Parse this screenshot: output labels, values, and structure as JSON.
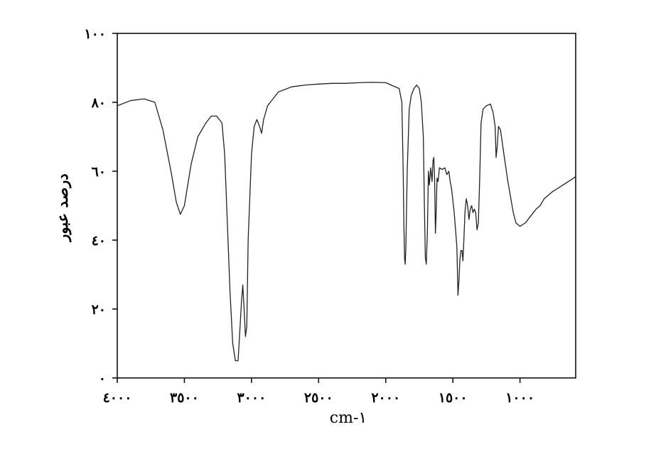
{
  "chart_data": {
    "type": "line",
    "xlabel": "cm-١",
    "ylabel": "درصد عبور",
    "xlim": [
      4000,
      585
    ],
    "ylim": [
      0,
      100
    ],
    "x_reversed": true,
    "grid": false,
    "xticks": [
      4000,
      3500,
      3000,
      2500,
      2000,
      1500,
      1000
    ],
    "xtick_labels": [
      "٤٠٠٠",
      "٣٥٠٠",
      "٣٠٠٠",
      "٢٥٠٠",
      "٢٠٠٠",
      "١٥٠٠",
      "١٠٠٠"
    ],
    "yticks": [
      0,
      20,
      40,
      60,
      80,
      100
    ],
    "ytick_labels": [
      "٠",
      "٢٠",
      "٤٠",
      "٦٠",
      "٨٠",
      "١٠٠"
    ],
    "series": [
      {
        "color": "#222222",
        "points": [
          [
            4000,
            79
          ],
          [
            3900,
            80.5
          ],
          [
            3800,
            81
          ],
          [
            3720,
            80
          ],
          [
            3660,
            72
          ],
          [
            3600,
            60
          ],
          [
            3560,
            51
          ],
          [
            3530,
            47.5
          ],
          [
            3500,
            50
          ],
          [
            3450,
            62
          ],
          [
            3400,
            70
          ],
          [
            3340,
            74
          ],
          [
            3300,
            76
          ],
          [
            3260,
            76
          ],
          [
            3220,
            74
          ],
          [
            3200,
            65
          ],
          [
            3180,
            45
          ],
          [
            3160,
            25
          ],
          [
            3140,
            10
          ],
          [
            3120,
            5
          ],
          [
            3100,
            5
          ],
          [
            3085,
            15
          ],
          [
            3075,
            22
          ],
          [
            3065,
            27
          ],
          [
            3055,
            20
          ],
          [
            3045,
            12
          ],
          [
            3035,
            15
          ],
          [
            3025,
            40
          ],
          [
            3000,
            65
          ],
          [
            2980,
            73
          ],
          [
            2960,
            75
          ],
          [
            2940,
            73
          ],
          [
            2925,
            71
          ],
          [
            2910,
            75
          ],
          [
            2880,
            79
          ],
          [
            2800,
            83
          ],
          [
            2700,
            84.5
          ],
          [
            2600,
            85
          ],
          [
            2500,
            85.3
          ],
          [
            2400,
            85.5
          ],
          [
            2300,
            85.5
          ],
          [
            2200,
            85.7
          ],
          [
            2100,
            85.8
          ],
          [
            2000,
            85.7
          ],
          [
            1900,
            84
          ],
          [
            1880,
            80
          ],
          [
            1870,
            60
          ],
          [
            1865,
            45
          ],
          [
            1860,
            35
          ],
          [
            1855,
            33
          ],
          [
            1850,
            38
          ],
          [
            1840,
            60
          ],
          [
            1825,
            78
          ],
          [
            1810,
            82
          ],
          [
            1790,
            84
          ],
          [
            1770,
            85
          ],
          [
            1750,
            84
          ],
          [
            1735,
            80
          ],
          [
            1720,
            70
          ],
          [
            1712,
            50
          ],
          [
            1705,
            35
          ],
          [
            1698,
            33
          ],
          [
            1690,
            42
          ],
          [
            1682,
            60
          ],
          [
            1675,
            56
          ],
          [
            1665,
            61
          ],
          [
            1655,
            57
          ],
          [
            1648,
            63
          ],
          [
            1642,
            64
          ],
          [
            1636,
            58
          ],
          [
            1630,
            42
          ],
          [
            1625,
            47
          ],
          [
            1618,
            58
          ],
          [
            1610,
            57
          ],
          [
            1600,
            61
          ],
          [
            1580,
            60.5
          ],
          [
            1560,
            61
          ],
          [
            1545,
            59
          ],
          [
            1530,
            60
          ],
          [
            1520,
            57
          ],
          [
            1510,
            55
          ],
          [
            1490,
            48
          ],
          [
            1470,
            38
          ],
          [
            1462,
            24
          ],
          [
            1455,
            28
          ],
          [
            1448,
            34
          ],
          [
            1440,
            37
          ],
          [
            1432,
            37
          ],
          [
            1425,
            34
          ],
          [
            1418,
            40
          ],
          [
            1410,
            48
          ],
          [
            1400,
            52
          ],
          [
            1390,
            50
          ],
          [
            1380,
            46
          ],
          [
            1370,
            49
          ],
          [
            1360,
            50
          ],
          [
            1350,
            48
          ],
          [
            1340,
            49
          ],
          [
            1330,
            48
          ],
          [
            1320,
            43
          ],
          [
            1310,
            45
          ],
          [
            1300,
            58
          ],
          [
            1290,
            74
          ],
          [
            1275,
            78
          ],
          [
            1250,
            79
          ],
          [
            1220,
            79.5
          ],
          [
            1200,
            77
          ],
          [
            1185,
            73
          ],
          [
            1178,
            64
          ],
          [
            1170,
            67
          ],
          [
            1160,
            73
          ],
          [
            1145,
            72
          ],
          [
            1120,
            65
          ],
          [
            1090,
            57
          ],
          [
            1050,
            48
          ],
          [
            1030,
            45
          ],
          [
            1000,
            44
          ],
          [
            960,
            45
          ],
          [
            920,
            47
          ],
          [
            880,
            49
          ],
          [
            850,
            50
          ],
          [
            820,
            52
          ],
          [
            790,
            53
          ],
          [
            760,
            54
          ],
          [
            720,
            55
          ],
          [
            680,
            56
          ],
          [
            640,
            57
          ],
          [
            600,
            58
          ],
          [
            585,
            58.5
          ]
        ]
      }
    ]
  }
}
